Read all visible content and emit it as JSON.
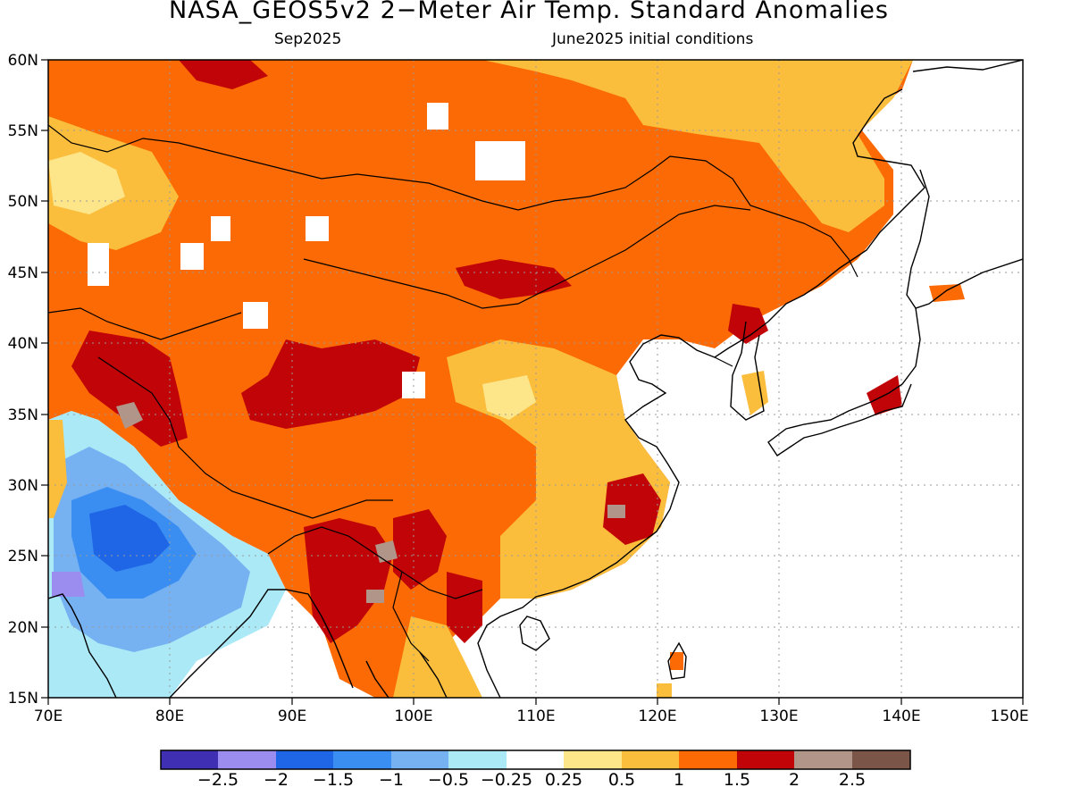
{
  "title": "NASA_GEOS5v2 2−Meter Air Temp. Standard Anomalies",
  "subtitle_left": "Sep2025",
  "subtitle_right": "June2025 initial conditions",
  "map": {
    "lat_labels": [
      "60N",
      "55N",
      "50N",
      "45N",
      "40N",
      "35N",
      "30N",
      "25N",
      "20N",
      "15N"
    ],
    "lon_labels": [
      "70E",
      "80E",
      "90E",
      "100E",
      "110E",
      "120E",
      "130E",
      "140E",
      "150E"
    ],
    "region": "East Asia, 70E–150E, 15N–60N",
    "gridlines": true
  },
  "colorbar": {
    "colors": [
      "#3f2fb3",
      "#9b8df0",
      "#1f66e6",
      "#3a8ef2",
      "#76b1f2",
      "#ace9f7",
      "#ffffff",
      "#fde58a",
      "#fbbd3c",
      "#fb6a04",
      "#c00408",
      "#b29589",
      "#7a5548"
    ],
    "labels": [
      "−2.5",
      "−2",
      "−1.5",
      "−1",
      "−0.5",
      "−0.25",
      "0.25",
      "0.5",
      "1",
      "1.5",
      "2",
      "2.5"
    ]
  }
}
